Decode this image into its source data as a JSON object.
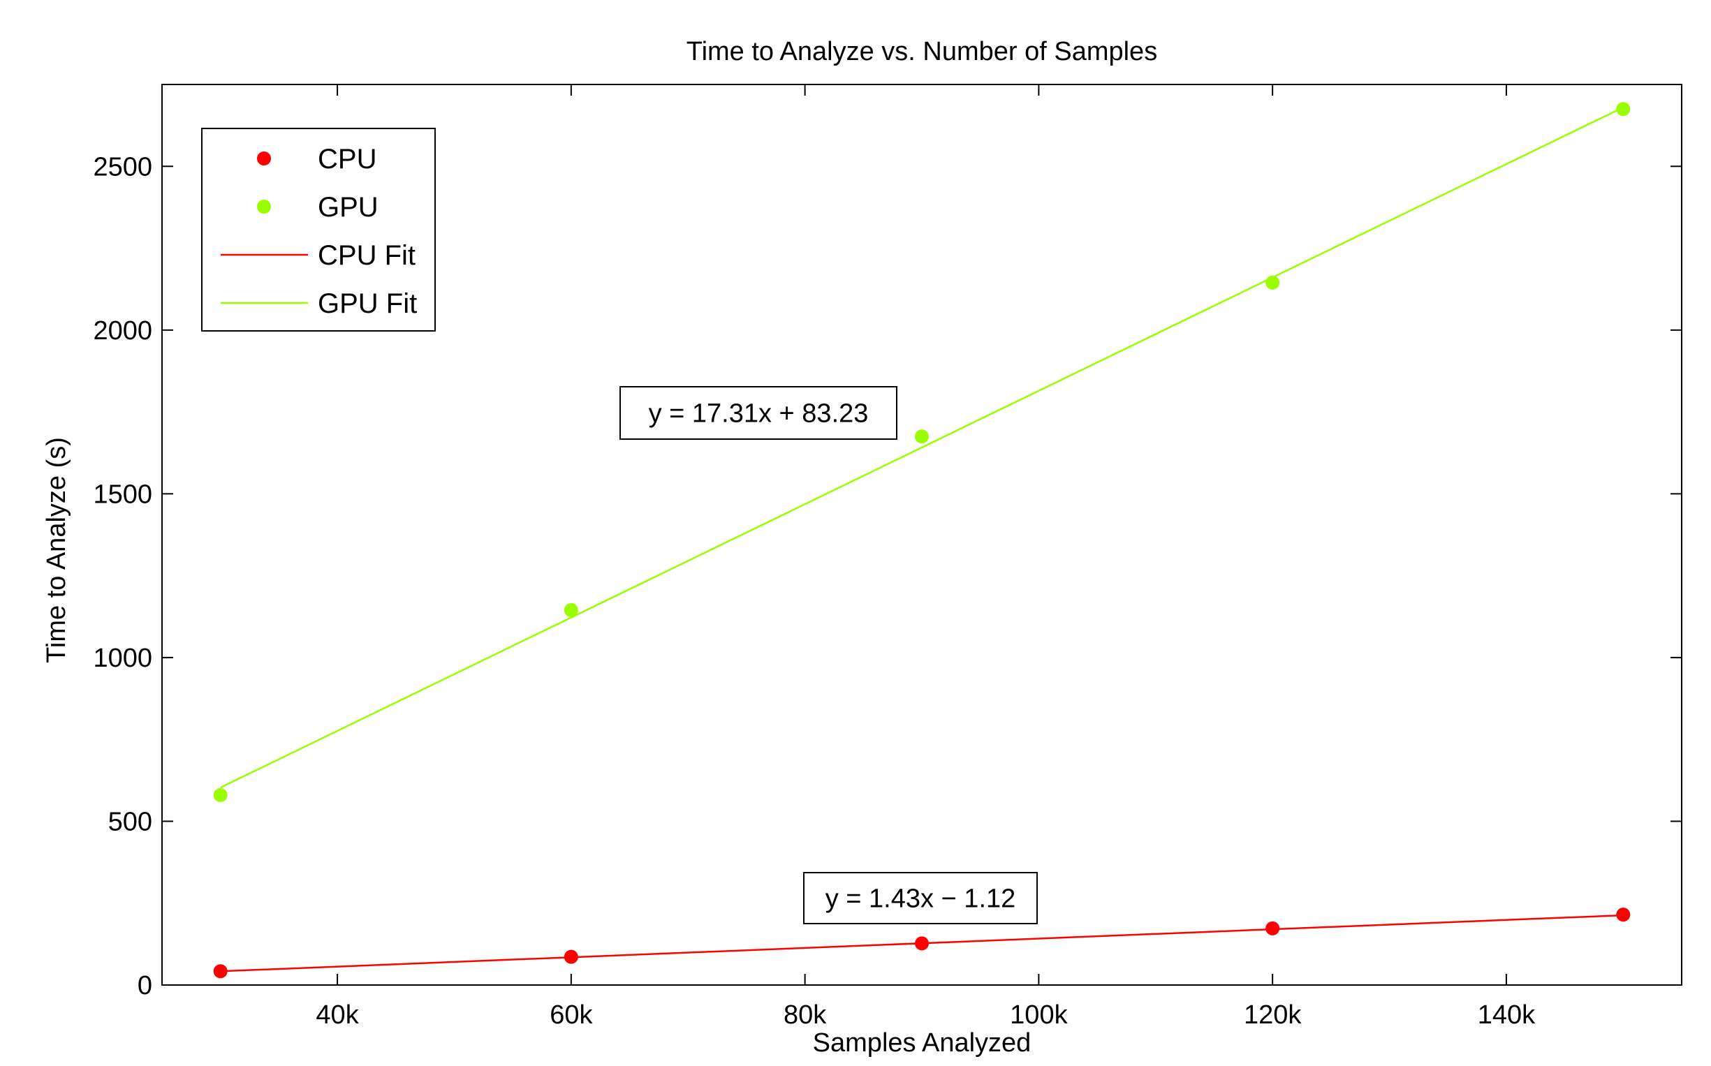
{
  "chart_data": {
    "type": "scatter",
    "title": "Time to Analyze vs. Number of Samples",
    "xlabel": "Samples Analyzed",
    "ylabel": "Time to Analyze (s)",
    "xlim": [
      25000,
      155000
    ],
    "ylim": [
      0,
      2750
    ],
    "x_ticks": [
      40000,
      60000,
      80000,
      100000,
      120000,
      140000
    ],
    "x_tick_labels": [
      "40k",
      "60k",
      "80k",
      "100k",
      "120k",
      "140k"
    ],
    "y_ticks": [
      0,
      500,
      1000,
      1500,
      2000,
      2500
    ],
    "y_tick_labels": [
      "0",
      "500",
      "1000",
      "1500",
      "2000",
      "2500"
    ],
    "grid": false,
    "legend_position": "top-left",
    "series": [
      {
        "name": "CPU",
        "kind": "points",
        "color": "#ff0000",
        "x": [
          30000,
          60000,
          90000,
          120000,
          150000
        ],
        "y": [
          42,
          86,
          127,
          173,
          215
        ]
      },
      {
        "name": "GPU",
        "kind": "points",
        "color": "#99ff00",
        "x": [
          30000,
          60000,
          90000,
          120000,
          150000
        ],
        "y": [
          580,
          1145,
          1675,
          2145,
          2675
        ]
      },
      {
        "name": "CPU Fit",
        "kind": "line",
        "color": "#ff0000",
        "x": [
          30000,
          150000
        ],
        "y": [
          42,
          213
        ]
      },
      {
        "name": "GPU Fit",
        "kind": "line",
        "color": "#99ff00",
        "x": [
          30000,
          150000
        ],
        "y": [
          603,
          2680
        ]
      }
    ],
    "annotations": [
      {
        "text": "y = 17.31x + 83.23"
      },
      {
        "text": "y = 1.43x − 1.12"
      }
    ]
  }
}
